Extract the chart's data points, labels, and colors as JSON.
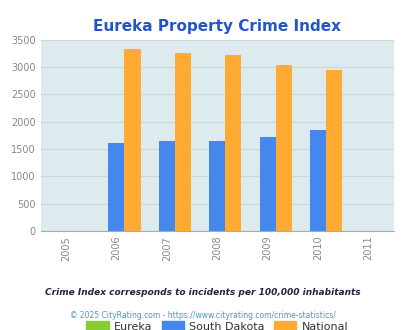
{
  "title": "Eureka Property Crime Index",
  "years": [
    2005,
    2006,
    2007,
    2008,
    2009,
    2010,
    2011
  ],
  "bar_years": [
    2006,
    2007,
    2008,
    2009,
    2010
  ],
  "eureka": [
    0,
    0,
    0,
    0,
    0
  ],
  "south_dakota": [
    1615,
    1640,
    1645,
    1710,
    1840
  ],
  "national": [
    3330,
    3260,
    3220,
    3040,
    2950
  ],
  "eureka_color": "#88cc33",
  "south_dakota_color": "#4488ee",
  "national_color": "#ffaa33",
  "bg_color": "#ddeaee",
  "ylim": [
    0,
    3500
  ],
  "yticks": [
    0,
    500,
    1000,
    1500,
    2000,
    2500,
    3000,
    3500
  ],
  "bar_width": 0.32,
  "title_color": "#2255cc",
  "title_fontsize": 11,
  "legend_labels": [
    "Eureka",
    "South Dakota",
    "National"
  ],
  "footnote1": "Crime Index corresponds to incidents per 100,000 inhabitants",
  "footnote2": "© 2025 CityRating.com - https://www.cityrating.com/crime-statistics/",
  "footnote1_color": "#222244",
  "footnote2_color": "#4499cc",
  "grid_color": "#c8d8dc",
  "tick_label_color": "#888888",
  "xlim": [
    2004.5,
    2011.5
  ]
}
